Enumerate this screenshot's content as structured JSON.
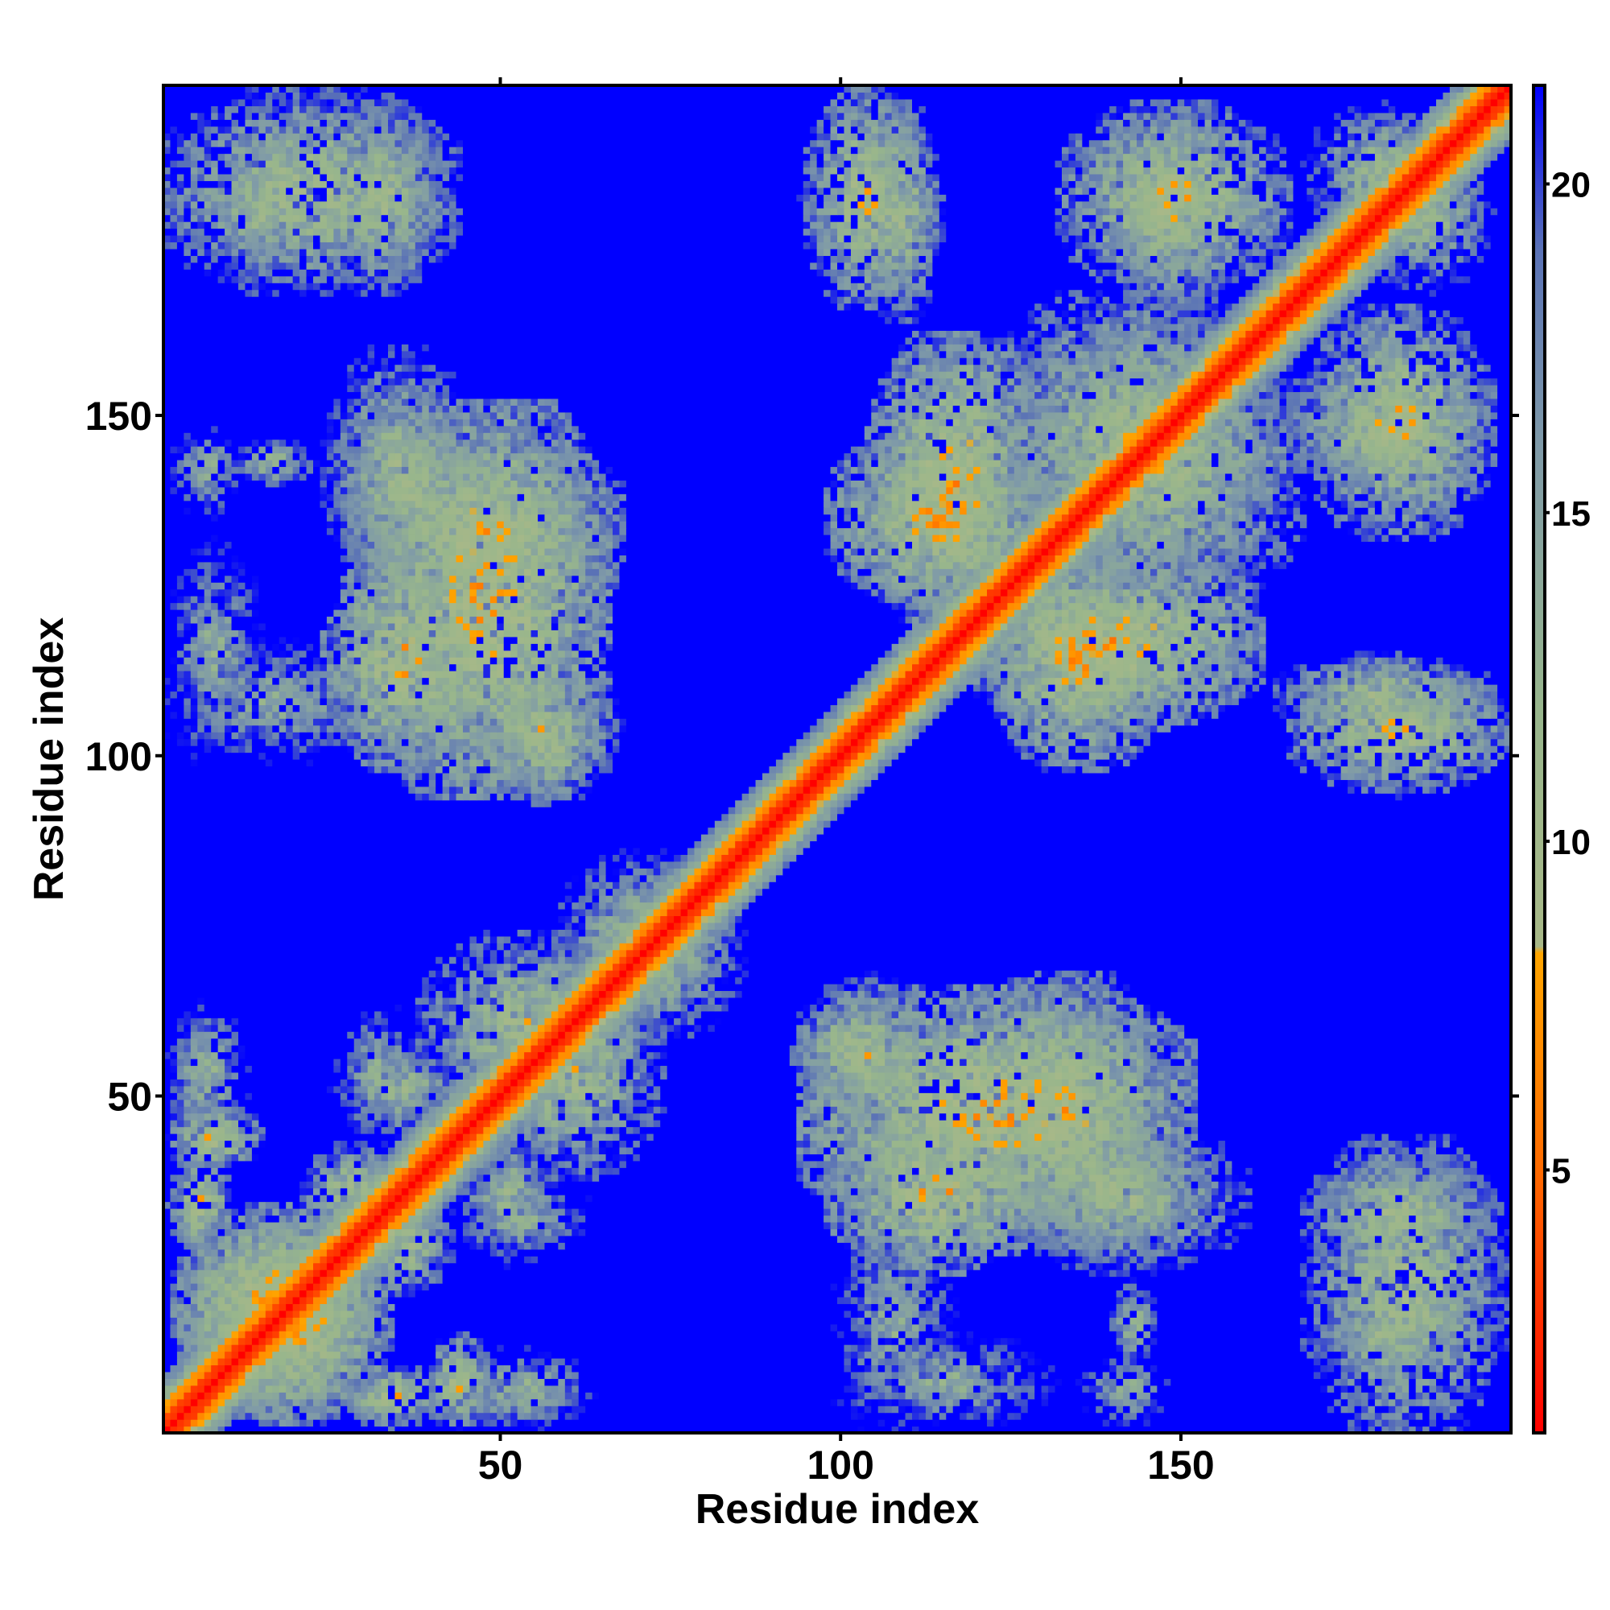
{
  "chart_data": {
    "type": "heatmap",
    "title": "",
    "xlabel": "Residue index",
    "ylabel": "Residue index",
    "n_residues": 198,
    "xlim": [
      1,
      198
    ],
    "ylim": [
      1,
      198
    ],
    "x_ticks": [
      50,
      100,
      150
    ],
    "y_ticks": [
      50,
      100,
      150
    ],
    "x_tick_labels": [
      "50",
      "100",
      "150"
    ],
    "y_tick_labels": [
      "50",
      "100",
      "150"
    ],
    "colorbar": {
      "range": [
        1,
        21.5
      ],
      "ticks": [
        5,
        10,
        15,
        20
      ],
      "tick_labels": [
        "5",
        "10",
        "15",
        "20"
      ],
      "scale": [
        {
          "value": 1,
          "color": "#ff0000"
        },
        {
          "value": 5,
          "color": "#ff6a00"
        },
        {
          "value": 8.3,
          "color": "#ffa500"
        },
        {
          "value": 8.4,
          "color": "#a8b888"
        },
        {
          "value": 12,
          "color": "#98b68c"
        },
        {
          "value": 16,
          "color": "#7f9aa8"
        },
        {
          "value": 19,
          "color": "#5a72b6"
        },
        {
          "value": 21.5,
          "color": "#0000ff"
        }
      ]
    },
    "background_value": 21.5,
    "diagonal": {
      "core_distance": 1.5,
      "inner_distance": 6,
      "halo_width": 4
    },
    "contact_patches": [
      {
        "x": [
          2,
          14
        ],
        "y": [
          40,
          48
        ],
        "min_distance": 6
      },
      {
        "x": [
          28,
          40
        ],
        "y": [
          2,
          10
        ],
        "min_distance": 6
      },
      {
        "x": [
          8,
          28
        ],
        "y": [
          4,
          28
        ],
        "min_distance": 5
      },
      {
        "x": [
          4,
          30
        ],
        "y": [
          8,
          32
        ],
        "min_distance": 5
      },
      {
        "x": [
          30,
          42
        ],
        "y": [
          22,
          34
        ],
        "min_distance": 7
      },
      {
        "x": [
          44,
          62
        ],
        "y": [
          2,
          8
        ],
        "min_distance": 10
      },
      {
        "x": [
          44,
          62
        ],
        "y": [
          26,
          38
        ],
        "min_distance": 10
      },
      {
        "x": [
          28,
          44
        ],
        "y": [
          44,
          58
        ],
        "min_distance": 9
      },
      {
        "x": [
          2,
          12
        ],
        "y": [
          44,
          62
        ],
        "min_distance": 9
      },
      {
        "x": [
          48,
          72
        ],
        "y": [
          40,
          68
        ],
        "min_distance": 7
      },
      {
        "x": [
          60,
          82
        ],
        "y": [
          62,
          84
        ],
        "min_distance": 8
      },
      {
        "x": [
          94,
          110
        ],
        "y": [
          50,
          64
        ],
        "min_distance": 7
      },
      {
        "x": [
          96,
          150
        ],
        "y": [
          32,
          64
        ],
        "min_distance": 5
      },
      {
        "x": [
          100,
          116
        ],
        "y": [
          2,
          32
        ],
        "min_distance": 10
      },
      {
        "x": [
          126,
          152
        ],
        "y": [
          26,
          48
        ],
        "min_distance": 8
      },
      {
        "x": [
          140,
          146
        ],
        "y": [
          12,
          22
        ],
        "min_distance": 8
      },
      {
        "x": [
          170,
          194
        ],
        "y": [
          26,
          40
        ],
        "min_distance": 7
      },
      {
        "x": [
          172,
          186
        ],
        "y": [
          8,
          22
        ],
        "min_distance": 8
      },
      {
        "x": [
          2,
          14
        ],
        "y": [
          100,
          130
        ],
        "min_distance": 10
      },
      {
        "x": [
          26,
          46
        ],
        "y": [
          100,
          128
        ],
        "min_distance": 5
      },
      {
        "x": [
          30,
          66
        ],
        "y": [
          120,
          146
        ],
        "min_distance": 6
      },
      {
        "x": [
          46,
          66
        ],
        "y": [
          96,
          112
        ],
        "min_distance": 7
      },
      {
        "x": [
          26,
          44
        ],
        "y": [
          126,
          158
        ],
        "min_distance": 8
      },
      {
        "x": [
          2,
          12
        ],
        "y": [
          136,
          148
        ],
        "min_distance": 10
      },
      {
        "x": [
          2,
          42
        ],
        "y": [
          170,
          196
        ],
        "min_distance": 7
      },
      {
        "x": [
          96,
          112
        ],
        "y": [
          168,
          196
        ],
        "min_distance": 6
      },
      {
        "x": [
          106,
          128
        ],
        "y": [
          120,
          160
        ],
        "min_distance": 5
      },
      {
        "x": [
          124,
          146
        ],
        "y": [
          100,
          128
        ],
        "min_distance": 5
      },
      {
        "x": [
          126,
          166
        ],
        "y": [
          124,
          162
        ],
        "min_distance": 7
      },
      {
        "x": [
          134,
          164
        ],
        "y": [
          170,
          194
        ],
        "min_distance": 6
      },
      {
        "x": [
          166,
          194
        ],
        "y": [
          104,
          114
        ],
        "min_distance": 7
      },
      {
        "x": [
          166,
          194
        ],
        "y": [
          140,
          156
        ],
        "min_distance": 7
      },
      {
        "x": [
          170,
          190
        ],
        "y": [
          178,
          194
        ],
        "min_distance": 8
      }
    ]
  }
}
